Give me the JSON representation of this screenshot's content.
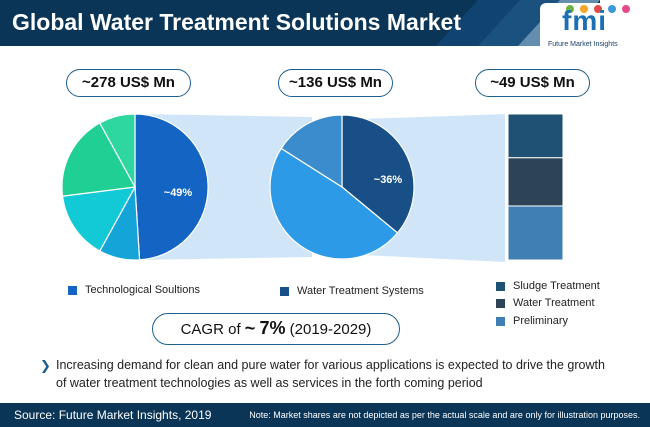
{
  "header": {
    "title": "Global Water Treatment Solutions Market"
  },
  "logo": {
    "word": "fmi",
    "subtitle": "Future Market Insights"
  },
  "chart_data": [
    {
      "type": "pie",
      "value_label": "~278 US$ Mn",
      "slices": [
        {
          "name": "Technological Soultions",
          "value": 49,
          "label": "~49%",
          "color": "#1464c4"
        },
        {
          "name": "",
          "value": 9,
          "color": "#14a4d8"
        },
        {
          "name": "",
          "value": 15,
          "color": "#12c9d6"
        },
        {
          "name": "",
          "value": 19,
          "color": "#1fcf94"
        },
        {
          "name": "",
          "value": 8,
          "color": "#2ed6a0"
        }
      ]
    },
    {
      "type": "pie",
      "value_label": "~136 US$ Mn",
      "slices": [
        {
          "name": "Water Treatment Systems",
          "value": 36,
          "label": "~36%",
          "color": "#174f86"
        },
        {
          "name": "",
          "value": 48,
          "color": "#2c9ae6"
        },
        {
          "name": "",
          "value": 16,
          "color": "#3b8ccc"
        }
      ]
    },
    {
      "type": "bar",
      "orientation": "stacked",
      "value_label": "~49 US$ Mn",
      "series": [
        {
          "name": "Sludge Treatment",
          "value": 30,
          "color": "#1e5174"
        },
        {
          "name": "Water Treatment",
          "value": 33,
          "color": "#2c4455"
        },
        {
          "name": "Preliminary",
          "value": 37,
          "color": "#3f7fb4"
        }
      ]
    }
  ],
  "legends": {
    "left": "Technological Soultions",
    "middle": "Water Treatment Systems",
    "right": [
      "Sludge Treatment",
      "Water Treatment",
      "Preliminary"
    ]
  },
  "cagr": {
    "prefix": "CAGR of",
    "approx": "~",
    "value": "7%",
    "period": "(2019-2029)"
  },
  "note": "Increasing demand for clean and pure water for various applications is expected to drive the growth of water treatment technologies as well as services in the forth coming period",
  "footer": {
    "source": "Source: Future Market Insights, 2019",
    "disclaimer": "Note: Market shares are not depicted as per the actual scale and are only for illustration purposes."
  },
  "colors": {
    "brand_dark": "#0b3556",
    "border": "#1c5f8e",
    "link_band": "#a9d2f2"
  }
}
